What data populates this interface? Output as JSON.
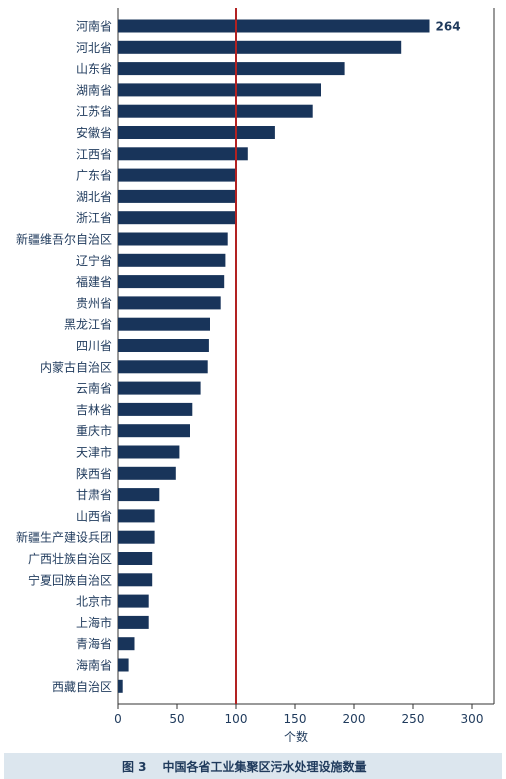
{
  "chart_data": {
    "type": "bar",
    "orientation": "horizontal",
    "categories": [
      "河南省",
      "河北省",
      "山东省",
      "湖南省",
      "江苏省",
      "安徽省",
      "江西省",
      "广东省",
      "湖北省",
      "浙江省",
      "新疆维吾尔自治区",
      "辽宁省",
      "福建省",
      "贵州省",
      "黑龙江省",
      "四川省",
      "内蒙古自治区",
      "云南省",
      "吉林省",
      "重庆市",
      "天津市",
      "陕西省",
      "甘肃省",
      "山西省",
      "新疆生产建设兵团",
      "广西壮族自治区",
      "宁夏回族自治区",
      "北京市",
      "上海市",
      "青海省",
      "海南省",
      "西藏自治区"
    ],
    "values": [
      264,
      240,
      192,
      172,
      165,
      133,
      110,
      100,
      100,
      100,
      93,
      91,
      90,
      87,
      78,
      77,
      76,
      70,
      63,
      61,
      52,
      49,
      35,
      31,
      31,
      29,
      29,
      26,
      26,
      14,
      9,
      4
    ],
    "value_labels": [
      "264",
      "",
      "",
      "",
      "",
      "",
      "",
      "",
      "",
      "",
      "",
      "",
      "",
      "",
      "",
      "",
      "",
      "",
      "",
      "",
      "",
      "",
      "",
      "",
      "",
      "",
      "",
      "",
      "",
      "",
      "",
      ""
    ],
    "xlabel": "个数",
    "xlim": [
      0,
      320
    ],
    "xticks": [
      0,
      50,
      100,
      150,
      200,
      250,
      300
    ],
    "reference_line": 100,
    "bar_color": "#18345a",
    "reference_line_color": "#b22222"
  },
  "caption": {
    "number": "图 3",
    "text": "中国各省工业集聚区污水处理设施数量"
  }
}
